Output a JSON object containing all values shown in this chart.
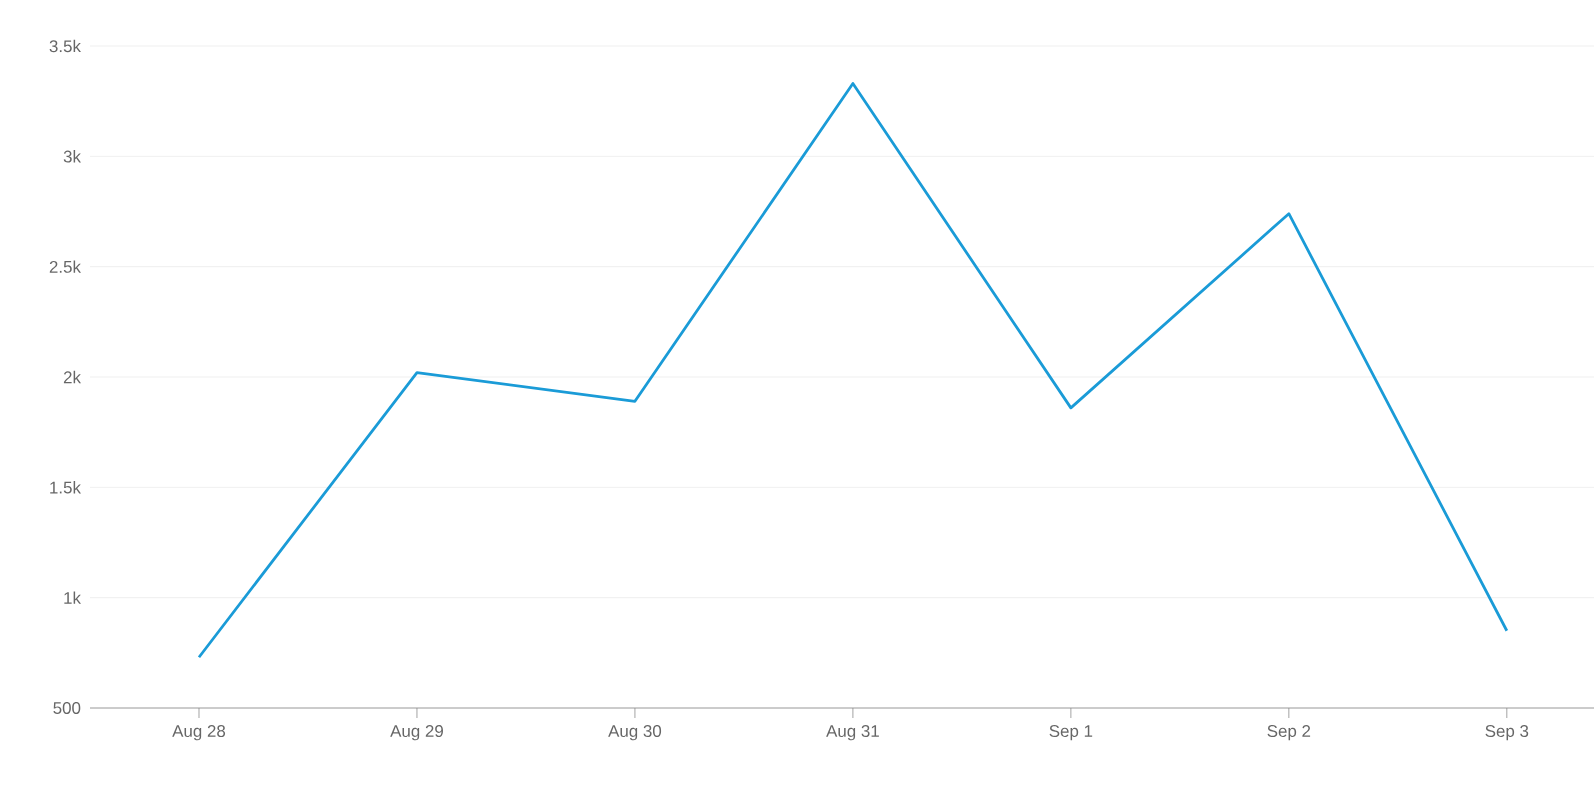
{
  "chart_data": {
    "type": "line",
    "categories": [
      "Aug 28",
      "Aug 29",
      "Aug 30",
      "Aug 31",
      "Sep 1",
      "Sep 2",
      "Sep 3"
    ],
    "values": [
      730,
      2020,
      1890,
      3330,
      1860,
      2740,
      850
    ],
    "color": "#1a9bd7",
    "ylim": [
      500,
      3500
    ],
    "yticks": [
      500,
      {
        "value": 1000,
        "label": "1k"
      },
      {
        "value": 1500,
        "label": "1.5k"
      },
      {
        "value": 2000,
        "label": "2k"
      },
      {
        "value": 2500,
        "label": "2.5k"
      },
      {
        "value": 3000,
        "label": "3k"
      },
      {
        "value": 3500,
        "label": "3.5k"
      }
    ],
    "grid": "y",
    "marker": "none",
    "line_style": "solid"
  }
}
